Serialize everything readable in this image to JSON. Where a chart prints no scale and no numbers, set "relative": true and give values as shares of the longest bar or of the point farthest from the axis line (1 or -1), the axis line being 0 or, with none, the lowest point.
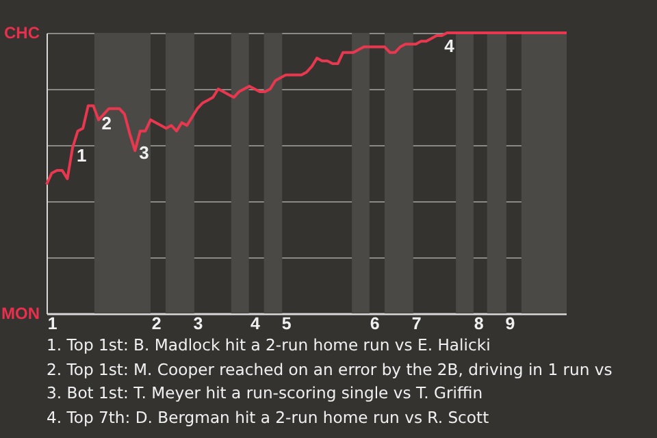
{
  "chart_data": {
    "type": "line",
    "relative": true,
    "categories": [
      null,
      "1",
      null,
      null,
      null,
      null,
      null,
      null,
      null,
      null,
      null,
      null,
      null,
      null,
      null,
      null,
      null,
      null,
      null,
      null,
      null,
      "2",
      null,
      null,
      null,
      null,
      null,
      null,
      null,
      "3",
      null,
      null,
      null,
      null,
      null,
      null,
      null,
      null,
      null,
      null,
      "4",
      null,
      null,
      null,
      null,
      null,
      "5",
      null,
      null,
      null,
      null,
      null,
      null,
      null,
      null,
      null,
      null,
      null,
      null,
      null,
      null,
      null,
      null,
      "6",
      null,
      null,
      null,
      null,
      null,
      null,
      null,
      "7",
      null,
      null,
      null,
      null,
      null,
      null,
      null,
      null,
      null,
      null,
      null,
      "8",
      null,
      null,
      null,
      null,
      null,
      "9",
      null,
      null,
      null,
      null,
      null,
      null,
      null,
      null,
      null,
      null,
      null
    ],
    "series": [
      {
        "color": "#e8384f",
        "values": [
          0.46,
          0.5,
          0.51,
          0.51,
          0.48,
          0.59,
          0.65,
          0.66,
          0.74,
          0.74,
          0.69,
          0.71,
          0.73,
          0.73,
          0.73,
          0.71,
          0.64,
          0.58,
          0.65,
          0.65,
          0.69,
          0.68,
          0.67,
          0.66,
          0.67,
          0.65,
          0.68,
          0.67,
          0.7,
          0.73,
          0.75,
          0.76,
          0.77,
          0.8,
          0.79,
          0.78,
          0.77,
          0.79,
          0.8,
          0.81,
          0.8,
          0.79,
          0.79,
          0.8,
          0.83,
          0.84,
          0.85,
          0.85,
          0.85,
          0.85,
          0.86,
          0.88,
          0.91,
          0.9,
          0.9,
          0.89,
          0.89,
          0.93,
          0.93,
          0.93,
          0.94,
          0.95,
          0.95,
          0.95,
          0.95,
          0.95,
          0.93,
          0.93,
          0.95,
          0.96,
          0.96,
          0.96,
          0.97,
          0.97,
          0.98,
          0.99,
          0.99,
          1,
          1,
          1,
          1,
          1,
          1,
          1,
          1,
          1,
          1,
          1,
          1,
          1,
          1,
          1,
          1,
          1,
          1,
          1,
          1,
          1,
          1,
          1,
          1
        ]
      }
    ],
    "grid": "y",
    "annotations": [
      "CHC",
      "MON",
      "1",
      "2",
      "3",
      "4",
      "1. Top 1st: B. Madlock hit a 2-run home run vs E. Halicki",
      "2. Top 1st: M. Cooper reached on an error by the 2B, driving in 1 run vs",
      "3. Bot 1st: T. Meyer hit a run-scoring single vs T. Griffin",
      "4. Top 7th: D. Bergman hit a 2-run home run vs R. Scott"
    ]
  }
}
